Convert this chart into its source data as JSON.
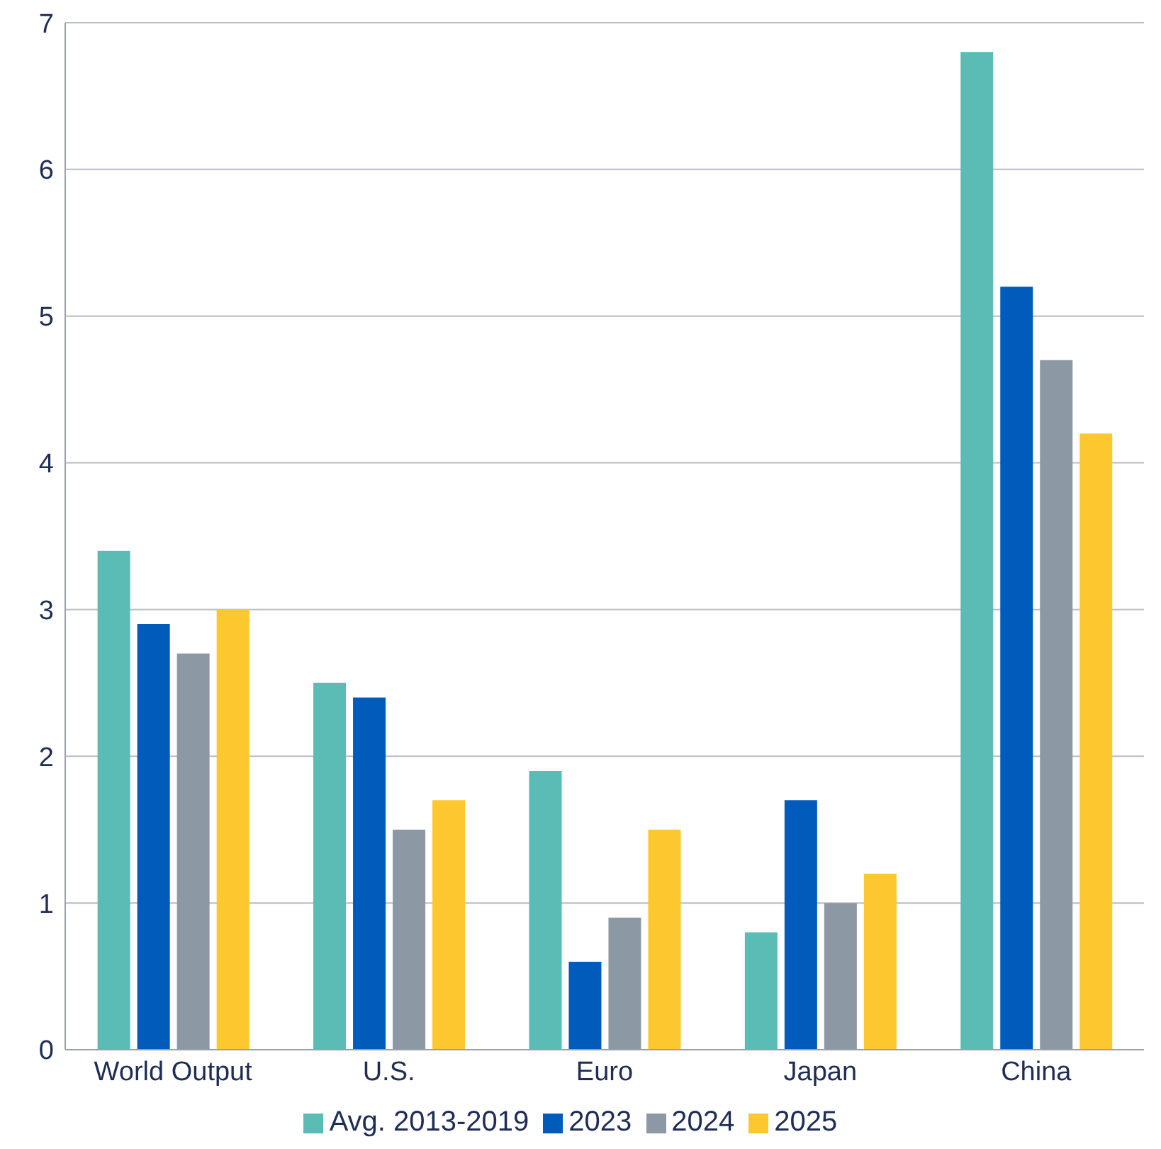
{
  "chart_data": {
    "type": "bar",
    "categories": [
      "World Output",
      "U.S.",
      "Euro",
      "Japan",
      "China"
    ],
    "series": [
      {
        "name": "Avg. 2013-2019",
        "color": "#5bbcb6",
        "values": [
          3.4,
          2.5,
          1.9,
          0.8,
          6.8
        ]
      },
      {
        "name": "2023",
        "color": "#005bbb",
        "values": [
          2.9,
          2.4,
          0.6,
          1.7,
          5.2
        ]
      },
      {
        "name": "2024",
        "color": "#8c98a3",
        "values": [
          2.7,
          1.5,
          0.9,
          1.0,
          4.7
        ]
      },
      {
        "name": "2025",
        "color": "#fdc82f",
        "values": [
          3.0,
          1.7,
          1.5,
          1.2,
          4.2
        ]
      }
    ],
    "ylim": [
      0,
      7
    ],
    "yticks": [
      0,
      1,
      2,
      3,
      4,
      5,
      6,
      7
    ],
    "grid": "y",
    "legend": "bottom"
  }
}
